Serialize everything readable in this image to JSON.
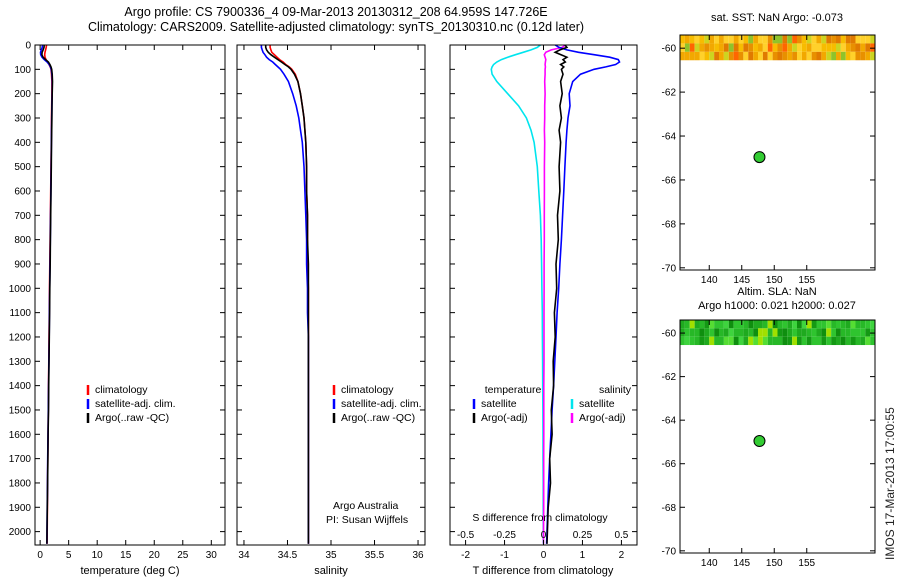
{
  "figure": {
    "title_line1": "Argo profile: CS 7900336_4 09-Mar-2013 20130312_208 64.959S 147.726E",
    "title_line2": "Climatology: CARS2009. Satellite-adjusted climatology: synTS_20130310.nc (0.12d later)",
    "watermark": "IMOS 17-Mar-2013 17:00:55"
  },
  "colors": {
    "axis": "#000000",
    "climatology": "#ff0000",
    "satellite_adj": "#0000ff",
    "argo": "#000000",
    "salinity_satellite": "#00e5ee",
    "salinity_argo": "#ff00ff",
    "marker_fill": "#33cc33",
    "marker_edge": "#000000"
  },
  "depths": [
    0,
    10,
    20,
    30,
    40,
    50,
    60,
    70,
    80,
    90,
    100,
    120,
    150,
    200,
    250,
    300,
    350,
    400,
    500,
    600,
    700,
    800,
    900,
    1000,
    1100,
    1200,
    1300,
    1400,
    1500,
    1600,
    1700,
    1800,
    1900,
    2000,
    2050
  ],
  "chart_data": [
    {
      "id": "temperature",
      "type": "line",
      "xlabel": "temperature (deg C)",
      "xlim": [
        -0.9,
        32.4
      ],
      "xticks": [
        0,
        5,
        10,
        15,
        20,
        25,
        30
      ],
      "ylim": [
        0,
        2055
      ],
      "yticks": [
        0,
        100,
        200,
        300,
        400,
        500,
        600,
        700,
        800,
        900,
        1000,
        1100,
        1200,
        1300,
        1400,
        1500,
        1600,
        1700,
        1800,
        1900,
        2000
      ],
      "series": [
        {
          "name": "climatology",
          "color": "#ff0000",
          "values": [
            1.12,
            1.06,
            0.96,
            0.86,
            0.8,
            0.86,
            1.02,
            1.3,
            1.56,
            1.76,
            1.9,
            2.0,
            2.06,
            2.06,
            2.02,
            2.0,
            1.97,
            1.95,
            1.9,
            1.85,
            1.8,
            1.75,
            1.7,
            1.65,
            1.6,
            1.55,
            1.51,
            1.47,
            1.43,
            1.39,
            1.35,
            1.31,
            1.27,
            1.24,
            1.22
          ]
        },
        {
          "name": "satellite-adj. clim.",
          "color": "#0000ff",
          "values": [
            0.42,
            0.36,
            0.2,
            0.06,
            0.1,
            0.32,
            0.72,
            1.22,
            1.58,
            1.8,
            1.94,
            2.06,
            2.12,
            2.1,
            2.06,
            2.02,
            2.0,
            1.97,
            1.92,
            1.88,
            1.83,
            1.78,
            1.73,
            1.68,
            1.63,
            1.58,
            1.53,
            1.48,
            1.43,
            1.38,
            1.33,
            1.29,
            1.24,
            1.2,
            1.18
          ]
        },
        {
          "name": "Argo(..raw -QC)",
          "color": "#000000",
          "values": [
            0.72,
            0.68,
            0.52,
            0.34,
            0.31,
            0.52,
            0.95,
            1.45,
            1.72,
            1.9,
            2.02,
            2.12,
            2.16,
            2.12,
            2.08,
            2.06,
            2.02,
            2.0,
            1.96,
            1.9,
            1.86,
            1.8,
            1.76,
            1.7,
            1.66,
            1.6,
            1.56,
            1.5,
            1.46,
            1.4,
            1.36,
            1.3,
            1.26,
            1.21,
            1.19
          ]
        }
      ]
    },
    {
      "id": "salinity",
      "type": "line",
      "xlabel": "salinity",
      "xlim": [
        33.92,
        36.08
      ],
      "xticks": [
        34,
        34.5,
        35,
        35.5,
        36
      ],
      "ylim": [
        0,
        2055
      ],
      "yticks": [
        0,
        100,
        200,
        300,
        400,
        500,
        600,
        700,
        800,
        900,
        1000,
        1100,
        1200,
        1300,
        1400,
        1500,
        1600,
        1700,
        1800,
        1900,
        2000
      ],
      "annotations": [
        "Argo Australia",
        "PI: Susan Wijffels"
      ],
      "series": [
        {
          "name": "climatology",
          "color": "#ff0000",
          "values": [
            34.3,
            34.3,
            34.31,
            34.32,
            34.35,
            34.38,
            34.41,
            34.45,
            34.48,
            34.52,
            34.55,
            34.59,
            34.62,
            34.65,
            34.67,
            34.69,
            34.7,
            34.71,
            34.72,
            34.72,
            34.73,
            34.73,
            34.73,
            34.74,
            34.74,
            34.74,
            34.74,
            34.74,
            34.74,
            34.74,
            34.74,
            34.74,
            34.74,
            34.74,
            34.74
          ]
        },
        {
          "name": "satellite-adj. clim.",
          "color": "#0000ff",
          "values": [
            34.2,
            34.2,
            34.21,
            34.22,
            34.24,
            34.26,
            34.29,
            34.33,
            34.36,
            34.39,
            34.42,
            34.46,
            34.51,
            34.56,
            34.6,
            34.63,
            34.65,
            34.67,
            34.69,
            34.7,
            34.71,
            34.72,
            34.72,
            34.73,
            34.73,
            34.74,
            34.74,
            34.74,
            34.74,
            34.74,
            34.74,
            34.74,
            34.74,
            34.74,
            34.74
          ]
        },
        {
          "name": "Argo(..raw -QC)",
          "color": "#000000",
          "values": [
            34.25,
            34.25,
            34.26,
            34.28,
            34.31,
            34.35,
            34.39,
            34.43,
            34.47,
            34.51,
            34.54,
            34.58,
            34.62,
            34.65,
            34.67,
            34.69,
            34.7,
            34.71,
            34.72,
            34.72,
            34.73,
            34.73,
            34.74,
            34.74,
            34.74,
            34.74,
            34.74,
            34.74,
            34.74,
            34.74,
            34.74,
            34.74,
            34.74,
            34.74,
            34.74
          ]
        }
      ]
    },
    {
      "id": "difference",
      "type": "line",
      "xlabel": "T difference from climatology",
      "xlim": [
        -2.4,
        2.4
      ],
      "xticks": [
        -2,
        -1,
        0,
        1,
        2
      ],
      "ylim": [
        0,
        2055
      ],
      "yticks": [
        0,
        100,
        200,
        300,
        400,
        500,
        600,
        700,
        800,
        900,
        1000,
        1100,
        1200,
        1300,
        1400,
        1500,
        1600,
        1700,
        1800,
        1900,
        2000
      ],
      "s_axis": {
        "label": "S difference from climatology",
        "ticks": [
          -0.5,
          -0.25,
          0,
          0.25,
          0.5
        ],
        "scale": 4
      },
      "series": [
        {
          "name": "satellite",
          "group": "salinity",
          "color": "#00e5ee",
          "x_scale": 4,
          "values": [
            -0.02,
            -0.04,
            -0.08,
            -0.13,
            -0.18,
            -0.23,
            -0.27,
            -0.3,
            -0.32,
            -0.33,
            -0.335,
            -0.33,
            -0.3,
            -0.23,
            -0.16,
            -0.11,
            -0.08,
            -0.06,
            -0.04,
            -0.03,
            -0.02,
            -0.015,
            -0.012,
            -0.01,
            -0.008,
            -0.007,
            -0.006,
            -0.005,
            -0.004,
            -0.003,
            -0.003,
            -0.002,
            -0.002,
            -0.001,
            -0.001
          ]
        },
        {
          "name": "Argo(-adj)",
          "group": "salinity",
          "color": "#ff00ff",
          "x_scale": 4,
          "values": [
            0.14,
            0.12,
            0.05,
            0.015,
            0.005,
            0.01,
            0.015,
            0.012,
            0.01,
            0.012,
            0.01,
            0.01,
            0.008,
            0.01,
            0.008,
            0.008,
            0.006,
            0.008,
            0.006,
            0.006,
            0.005,
            0.005,
            0.004,
            0.004,
            0.003,
            0.003,
            0.003,
            0.002,
            0.002,
            0.002,
            0.001,
            0.001,
            0.001,
            0.0,
            0.0
          ]
        },
        {
          "name": "satellite",
          "group": "temperature",
          "color": "#0000ff",
          "x_scale": 1,
          "values": [
            0.3,
            0.4,
            0.6,
            0.9,
            1.3,
            1.7,
            1.92,
            1.95,
            1.85,
            1.6,
            1.3,
            0.95,
            0.75,
            0.66,
            0.68,
            0.63,
            0.6,
            0.58,
            0.55,
            0.52,
            0.49,
            0.46,
            0.42,
            0.39,
            0.35,
            0.32,
            0.29,
            0.26,
            0.22,
            0.19,
            0.16,
            0.13,
            0.11,
            0.09,
            0.08
          ]
        },
        {
          "name": "Argo(-adj)",
          "group": "temperature",
          "color": "#000000",
          "x_scale": 1,
          "values": [
            0.55,
            0.6,
            0.42,
            0.3,
            0.45,
            0.6,
            0.5,
            0.56,
            0.44,
            0.52,
            0.46,
            0.5,
            0.44,
            0.48,
            0.42,
            0.46,
            0.4,
            0.44,
            0.4,
            0.42,
            0.36,
            0.38,
            0.32,
            0.34,
            0.28,
            0.3,
            0.25,
            0.26,
            0.2,
            0.22,
            0.16,
            0.18,
            0.12,
            0.1,
            0.09
          ]
        }
      ],
      "legend_columns": [
        {
          "header": "temperature",
          "items": [
            {
              "label": "satellite",
              "color": "#0000ff"
            },
            {
              "label": "Argo(-adj)",
              "color": "#000000"
            }
          ]
        },
        {
          "header": "salinity",
          "items": [
            {
              "label": "satellite",
              "color": "#00e5ee"
            },
            {
              "label": "Argo(-adj)",
              "color": "#ff00ff"
            }
          ]
        }
      ]
    },
    {
      "id": "sst_map",
      "type": "map-scatter",
      "title": "sat. SST: NaN Argo: -0.073",
      "xlim": [
        135.5,
        165.5
      ],
      "xticks": [
        140,
        145,
        150,
        155
      ],
      "ylim": [
        -59.4,
        -70.1
      ],
      "yticks": [
        -60,
        -62,
        -64,
        -66,
        -68,
        -70
      ],
      "marker": {
        "lon": 147.726,
        "lat": -64.959
      },
      "strip": {
        "lat_from": -59.4,
        "lat_to": -60.55,
        "palette": [
          "#e89000",
          "#f2a800",
          "#f7bc00",
          "#ffd12b",
          "#e07a00",
          "#f7bc00",
          "#ffd12b",
          "#f2a800",
          "#cdd420",
          "#8fc32a",
          "#ff6600",
          "#f2a800",
          "#ffd12b",
          "#e89000"
        ]
      }
    },
    {
      "id": "sla_map",
      "type": "map-scatter",
      "title_line1": "Altim. SLA: NaN",
      "title_line2": "Argo h1000: 0.021 h2000: 0.027",
      "xlim": [
        135.5,
        165.5
      ],
      "xticks": [
        140,
        145,
        150,
        155
      ],
      "ylim": [
        -59.4,
        -70.1
      ],
      "yticks": [
        -60,
        -62,
        -64,
        -66,
        -68,
        -70
      ],
      "marker": {
        "lon": 147.726,
        "lat": -64.959
      },
      "strip": {
        "lat_from": -59.4,
        "lat_to": -60.55,
        "palette": [
          "#1faa1f",
          "#2fc42f",
          "#27b827",
          "#3ed43e",
          "#149914",
          "#2fc42f",
          "#55dd33",
          "#1faa1f",
          "#27b827",
          "#a0e000",
          "#0f8f0f",
          "#2fc42f"
        ]
      }
    }
  ]
}
